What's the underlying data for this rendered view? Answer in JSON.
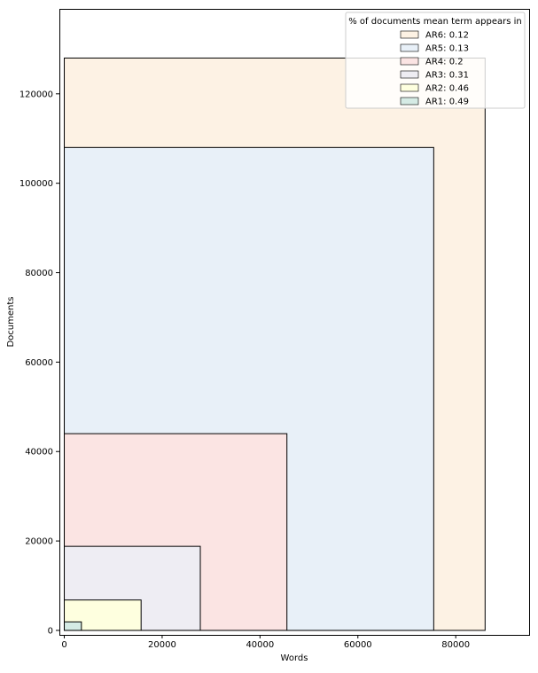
{
  "chart_data": {
    "type": "area",
    "xlabel": "Words",
    "ylabel": "Documents",
    "xlim": [
      -1000,
      95000
    ],
    "ylim": [
      -1000,
      139000
    ],
    "x_ticks": [
      0,
      20000,
      40000,
      60000,
      80000
    ],
    "x_tick_labels": [
      "0",
      "20000",
      "40000",
      "60000",
      "80000"
    ],
    "y_ticks": [
      0,
      20000,
      40000,
      60000,
      80000,
      100000,
      120000
    ],
    "y_tick_labels": [
      "0",
      "20000",
      "40000",
      "60000",
      "80000",
      "100000",
      "120000"
    ],
    "legend": {
      "title": "% of documents mean term appears in",
      "position": "top-right"
    },
    "series": [
      {
        "name": "AR6: 0.12",
        "x": 86000,
        "y": 128000,
        "color": "#fdf2e4"
      },
      {
        "name": "AR5: 0.13",
        "x": 75500,
        "y": 108000,
        "color": "#e8f0f8"
      },
      {
        "name": "AR4: 0.2",
        "x": 45500,
        "y": 44000,
        "color": "#fbe4e3"
      },
      {
        "name": "AR3: 0.31",
        "x": 27800,
        "y": 18800,
        "color": "#eeedf3"
      },
      {
        "name": "AR2: 0.46",
        "x": 15700,
        "y": 6800,
        "color": "#feffdf"
      },
      {
        "name": "AR1: 0.49",
        "x": 3500,
        "y": 1900,
        "color": "#d5ebe5"
      }
    ],
    "grid": false
  }
}
